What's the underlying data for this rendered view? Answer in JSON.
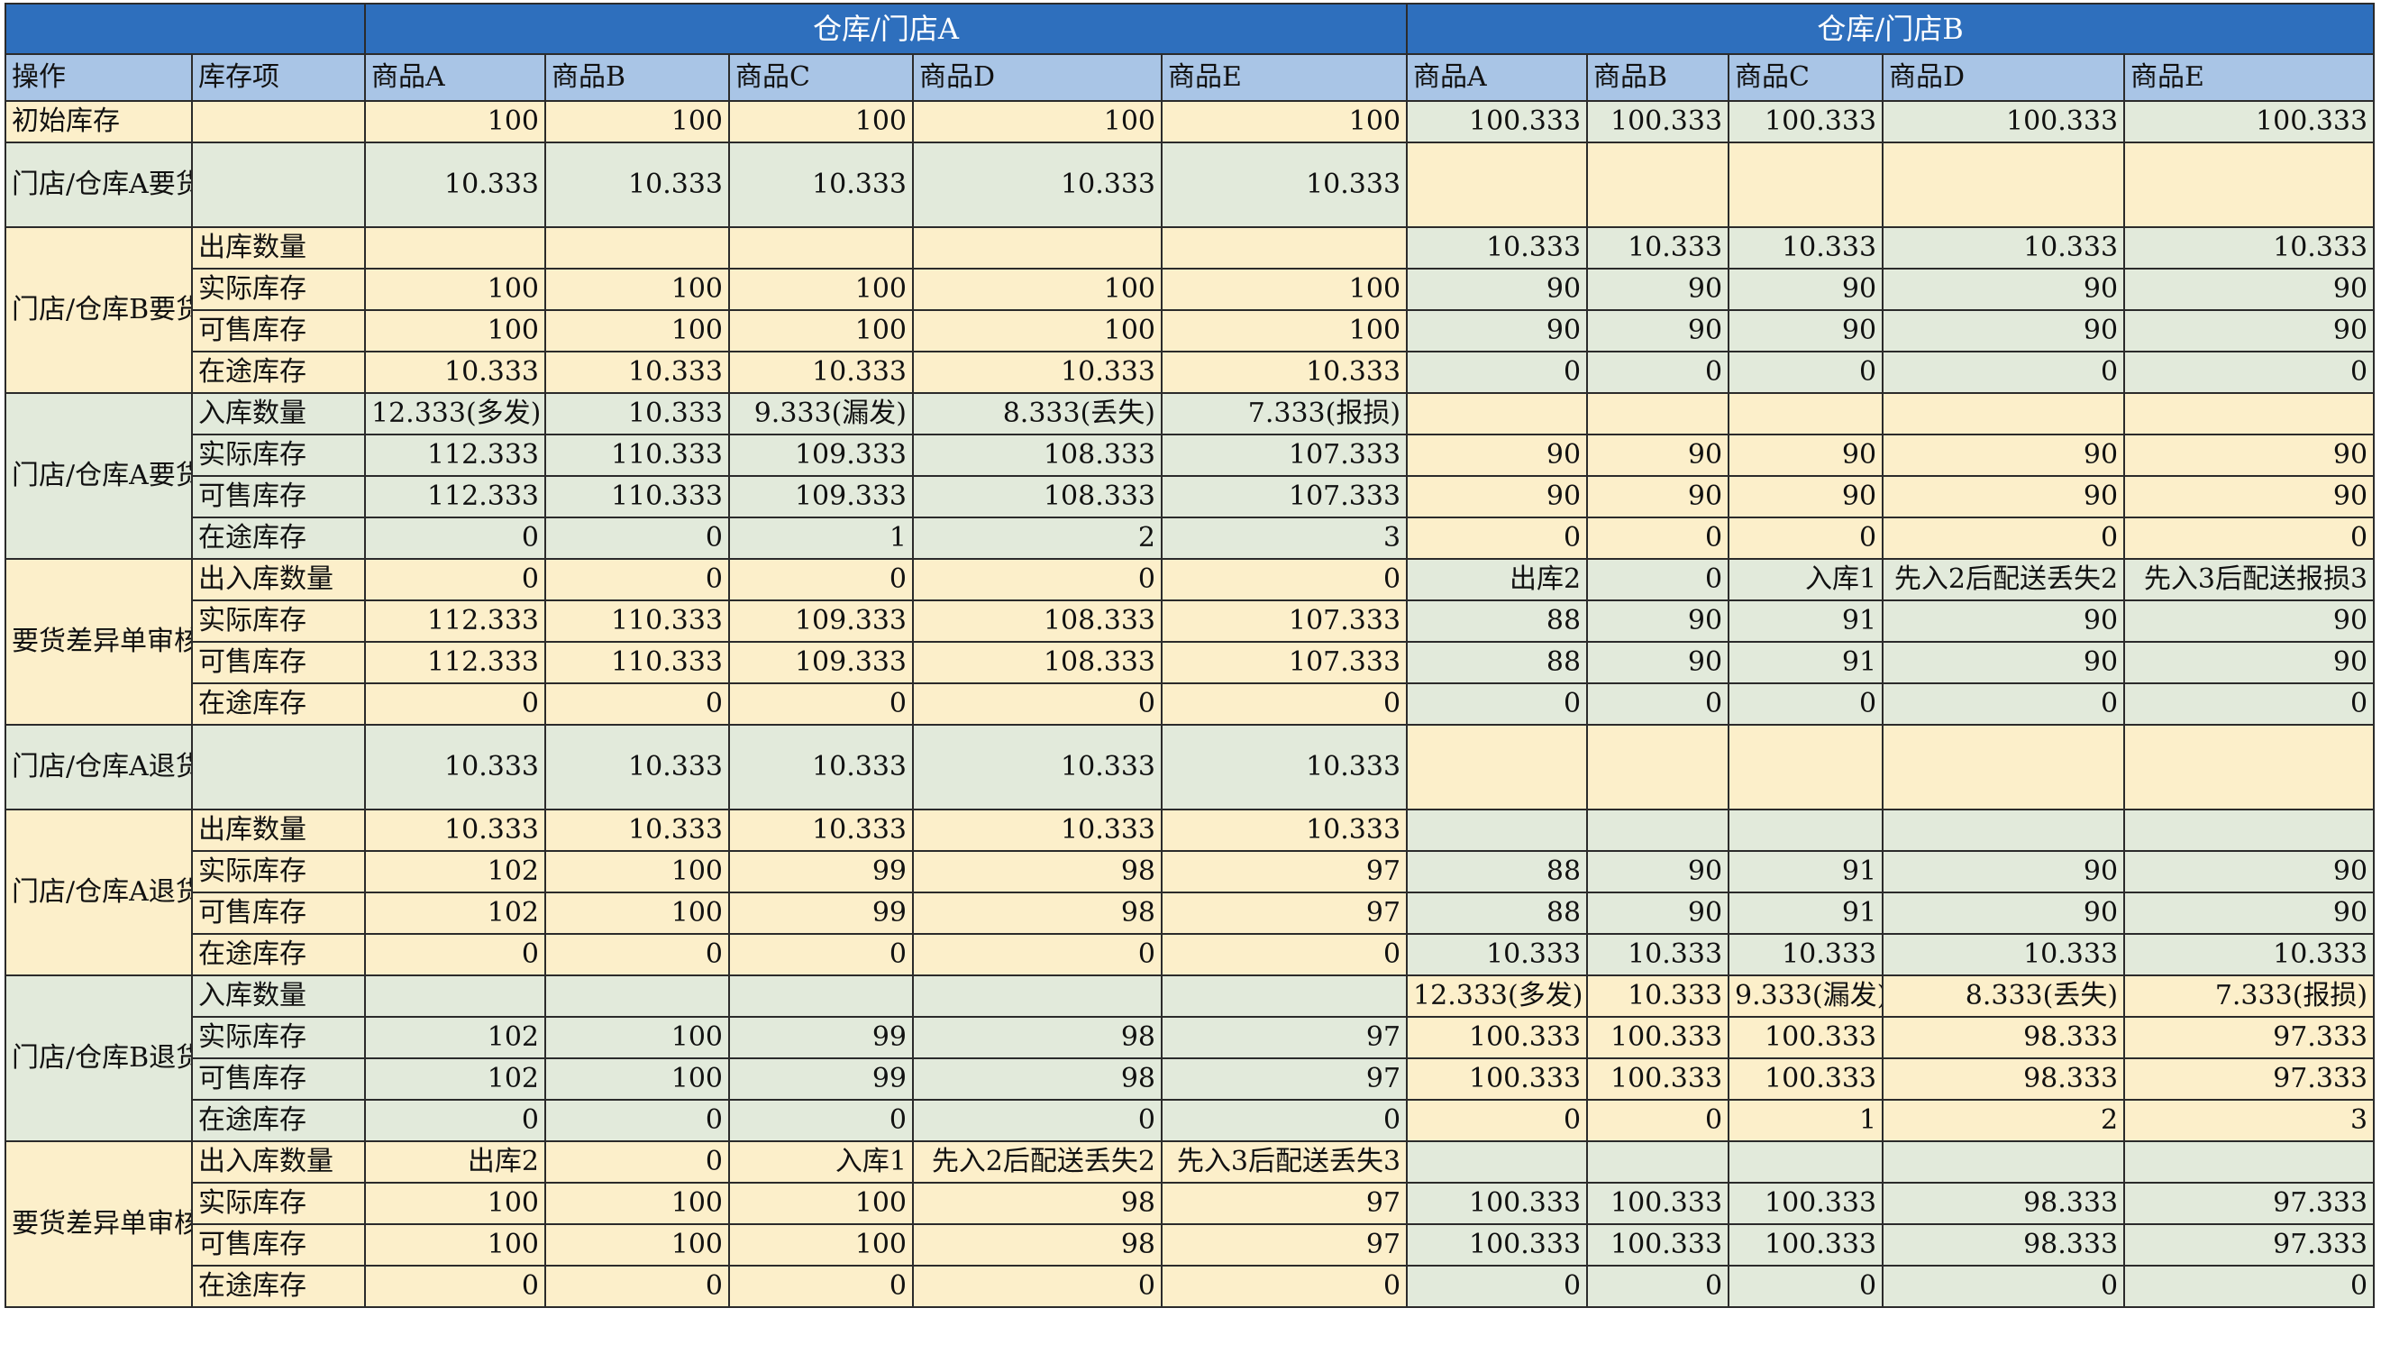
{
  "header": {
    "group_a": "仓库/门店A",
    "group_b": "仓库/门店B",
    "col_op": "操作",
    "col_item": "库存项",
    "products": [
      "商品A",
      "商品B",
      "商品C",
      "商品D",
      "商品E"
    ]
  },
  "row_initial": {
    "op": "初始库存",
    "a": [
      "100",
      "100",
      "100",
      "100",
      "100"
    ],
    "b": [
      "100.333",
      "100.333",
      "100.333",
      "100.333",
      "100.333"
    ]
  },
  "row_req": {
    "op": "门店/仓库A要货申请",
    "a": [
      "10.333",
      "10.333",
      "10.333",
      "10.333",
      "10.333"
    ]
  },
  "g3": {
    "op": "门店/仓库B要货出库",
    "rows": [
      {
        "item": "出库数量",
        "a": [
          "",
          "",
          "",
          "",
          ""
        ],
        "b": [
          "10.333",
          "10.333",
          "10.333",
          "10.333",
          "10.333"
        ]
      },
      {
        "item": "实际库存",
        "a": [
          "100",
          "100",
          "100",
          "100",
          "100"
        ],
        "b": [
          "90",
          "90",
          "90",
          "90",
          "90"
        ]
      },
      {
        "item": "可售库存",
        "a": [
          "100",
          "100",
          "100",
          "100",
          "100"
        ],
        "b": [
          "90",
          "90",
          "90",
          "90",
          "90"
        ]
      },
      {
        "item": "在途库存",
        "a": [
          "10.333",
          "10.333",
          "10.333",
          "10.333",
          "10.333"
        ],
        "b": [
          "0",
          "0",
          "0",
          "0",
          "0"
        ]
      }
    ]
  },
  "g4": {
    "op": "门店/仓库A要货入库",
    "rows": [
      {
        "item": "入库数量",
        "a": [
          "12.333(多发)",
          "10.333",
          "9.333(漏发)",
          "8.333(丢失)",
          "7.333(报损)"
        ],
        "b": [
          "",
          "",
          "",
          "",
          ""
        ]
      },
      {
        "item": "实际库存",
        "a": [
          "112.333",
          "110.333",
          "109.333",
          "108.333",
          "107.333"
        ],
        "b": [
          "90",
          "90",
          "90",
          "90",
          "90"
        ]
      },
      {
        "item": "可售库存",
        "a": [
          "112.333",
          "110.333",
          "109.333",
          "108.333",
          "107.333"
        ],
        "b": [
          "90",
          "90",
          "90",
          "90",
          "90"
        ]
      },
      {
        "item": "在途库存",
        "a": [
          "0",
          "0",
          "1",
          "2",
          "3"
        ],
        "b": [
          "0",
          "0",
          "0",
          "0",
          "0"
        ]
      }
    ]
  },
  "g5": {
    "op": "要货差异单审核通过",
    "rows": [
      {
        "item": "出入库数量",
        "a": [
          "0",
          "0",
          "0",
          "0",
          "0"
        ],
        "b": [
          "出库2",
          "0",
          "入库1",
          "先入2后配送丢失2",
          "先入3后配送报损3"
        ]
      },
      {
        "item": "实际库存",
        "a": [
          "112.333",
          "110.333",
          "109.333",
          "108.333",
          "107.333"
        ],
        "b": [
          "88",
          "90",
          "91",
          "90",
          "90"
        ]
      },
      {
        "item": "可售库存",
        "a": [
          "112.333",
          "110.333",
          "109.333",
          "108.333",
          "107.333"
        ],
        "b": [
          "88",
          "90",
          "91",
          "90",
          "90"
        ]
      },
      {
        "item": "在途库存",
        "a": [
          "0",
          "0",
          "0",
          "0",
          "0"
        ],
        "b": [
          "0",
          "0",
          "0",
          "0",
          "0"
        ]
      }
    ]
  },
  "row_return_req": {
    "op": "门店/仓库A退货申请",
    "a": [
      "10.333",
      "10.333",
      "10.333",
      "10.333",
      "10.333"
    ]
  },
  "g7": {
    "op": "门店/仓库A退货出库",
    "rows": [
      {
        "item": "出库数量",
        "a": [
          "10.333",
          "10.333",
          "10.333",
          "10.333",
          "10.333"
        ],
        "b": [
          "",
          "",
          "",
          "",
          ""
        ]
      },
      {
        "item": "实际库存",
        "a": [
          "102",
          "100",
          "99",
          "98",
          "97"
        ],
        "b": [
          "88",
          "90",
          "91",
          "90",
          "90"
        ]
      },
      {
        "item": "可售库存",
        "a": [
          "102",
          "100",
          "99",
          "98",
          "97"
        ],
        "b": [
          "88",
          "90",
          "91",
          "90",
          "90"
        ]
      },
      {
        "item": "在途库存",
        "a": [
          "0",
          "0",
          "0",
          "0",
          "0"
        ],
        "b": [
          "10.333",
          "10.333",
          "10.333",
          "10.333",
          "10.333"
        ]
      }
    ]
  },
  "g8": {
    "op": "门店/仓库B退货入库",
    "rows": [
      {
        "item": "入库数量",
        "a": [
          "",
          "",
          "",
          "",
          ""
        ],
        "b": [
          "12.333(多发)",
          "10.333",
          "9.333(漏发)",
          "8.333(丢失)",
          "7.333(报损)"
        ]
      },
      {
        "item": "实际库存",
        "a": [
          "102",
          "100",
          "99",
          "98",
          "97"
        ],
        "b": [
          "100.333",
          "100.333",
          "100.333",
          "98.333",
          "97.333"
        ]
      },
      {
        "item": "可售库存",
        "a": [
          "102",
          "100",
          "99",
          "98",
          "97"
        ],
        "b": [
          "100.333",
          "100.333",
          "100.333",
          "98.333",
          "97.333"
        ]
      },
      {
        "item": "在途库存",
        "a": [
          "0",
          "0",
          "0",
          "0",
          "0"
        ],
        "b": [
          "0",
          "0",
          "1",
          "2",
          "3"
        ]
      }
    ]
  },
  "g9": {
    "op": "要货差异单审核通过",
    "rows": [
      {
        "item": "出入库数量",
        "a": [
          "出库2",
          "0",
          "入库1",
          "先入2后配送丢失2",
          "先入3后配送丢失3"
        ],
        "b": [
          "",
          "",
          "",
          "",
          ""
        ]
      },
      {
        "item": "实际库存",
        "a": [
          "100",
          "100",
          "100",
          "98",
          "97"
        ],
        "b": [
          "100.333",
          "100.333",
          "100.333",
          "98.333",
          "97.333"
        ]
      },
      {
        "item": "可售库存",
        "a": [
          "100",
          "100",
          "100",
          "98",
          "97"
        ],
        "b": [
          "100.333",
          "100.333",
          "100.333",
          "98.333",
          "97.333"
        ]
      },
      {
        "item": "在途库存",
        "a": [
          "0",
          "0",
          "0",
          "0",
          "0"
        ],
        "b": [
          "0",
          "0",
          "0",
          "0",
          "0"
        ]
      }
    ]
  },
  "colors": {
    "header_blue": "#2e6fbd",
    "subheader_blue": "#a9c5e6",
    "row_yellow": "#fcefca",
    "row_green": "#e2eadb"
  }
}
